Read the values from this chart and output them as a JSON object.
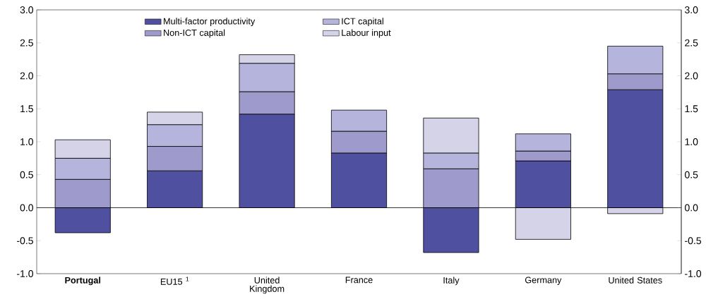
{
  "chart_data": {
    "type": "bar",
    "stacked": true,
    "categories": [
      "**Portugal**",
      "EU15 $^{1}$",
      "United Kingdom",
      "France",
      "Italy",
      "Germany",
      "United States"
    ],
    "series": [
      {
        "name": "Multi-factor productivity",
        "color": "#5050a0",
        "values": [
          -0.38,
          0.56,
          1.42,
          0.83,
          -0.68,
          0.71,
          1.79
        ]
      },
      {
        "name": "Non-ICT capital",
        "color": "#9e9acb",
        "values": [
          0.43,
          0.37,
          0.34,
          0.33,
          0.59,
          0.15,
          0.24
        ]
      },
      {
        "name": "ICT capital",
        "color": "#b4b4dc",
        "values": [
          0.32,
          0.33,
          0.43,
          0.32,
          0.24,
          0.26,
          0.42
        ]
      },
      {
        "name": "Labour input",
        "color": "#d5d3e8",
        "values": [
          0.28,
          0.19,
          0.13,
          null,
          0.53,
          -0.48,
          -0.09
        ]
      }
    ],
    "ylim": [
      -1.0,
      3.0
    ],
    "yticks": [
      {
        "value": -1.0,
        "label": "-1.0"
      },
      {
        "value": -0.5,
        "label": "-0.5"
      },
      {
        "value": 0.0,
        "label": "0.0"
      },
      {
        "value": 0.5,
        "label": "0.5"
      },
      {
        "value": 1.0,
        "label": "1.0"
      },
      {
        "value": 1.5,
        "label": "1.5"
      },
      {
        "value": 2.0,
        "label": "2.0"
      },
      {
        "value": 2.5,
        "label": "2.5"
      },
      {
        "value": 3.0,
        "label": "3.0"
      }
    ],
    "y2lim": [
      -1.0,
      3.0
    ],
    "y2ticks": [
      {
        "value": -1.0,
        "label": "-1.0"
      },
      {
        "value": -0.5,
        "label": "-0.5"
      },
      {
        "value": 0.0,
        "label": "0.0"
      },
      {
        "value": 0.5,
        "label": "0.5"
      },
      {
        "value": 1.0,
        "label": "1.0"
      },
      {
        "value": 1.5,
        "label": "1.5"
      },
      {
        "value": 2.0,
        "label": "2.0"
      },
      {
        "value": 2.5,
        "label": "2.5"
      },
      {
        "value": 3.0,
        "label": "3.0"
      }
    ],
    "ref_lines": [
      {
        "axis": "y",
        "value": 0
      }
    ],
    "legend": "top",
    "grid": false
  }
}
